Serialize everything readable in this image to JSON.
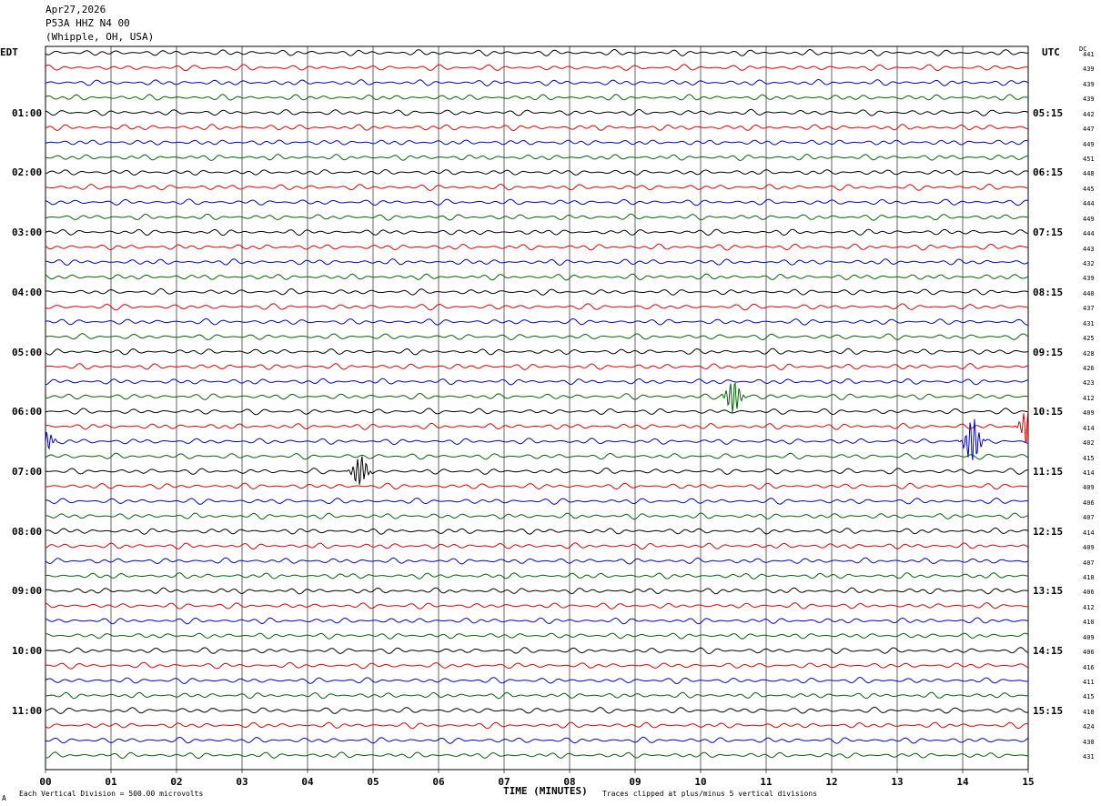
{
  "header": {
    "date": "Apr27,2026",
    "station": "P53A HHZ N4 00",
    "location": "(Whipple, OH, USA)"
  },
  "left_axis_title": "EDT",
  "right_axis_title": "UTC",
  "dc_title": "DC",
  "footer": {
    "scale_note": "Each Vertical Division =  500.00 microvolts",
    "clip_note": "Traces clipped at plus/minus 5 vertical divisions",
    "corner_mark": "A"
  },
  "colors": {
    "trace_cycle": [
      "#000000",
      "#e00000",
      "#0000cc",
      "#006400"
    ],
    "grid": "#000000"
  },
  "chart_data": {
    "type": "line",
    "title": "P53A HHZ N4 00",
    "xlabel": "TIME (MINUTES)",
    "xlim": [
      0,
      15
    ],
    "x_ticks": [
      "00",
      "01",
      "02",
      "03",
      "04",
      "05",
      "06",
      "07",
      "08",
      "09",
      "10",
      "11",
      "12",
      "13",
      "14",
      "15"
    ],
    "traces_per_hour": 4,
    "trace_count": 48,
    "left_hour_labels": [
      "01:00",
      "02:00",
      "03:00",
      "04:00",
      "05:00",
      "06:00",
      "07:00",
      "08:00",
      "09:00",
      "10:00",
      "11:00"
    ],
    "right_hour_labels": [
      "05:15",
      "06:15",
      "07:15",
      "08:15",
      "09:15",
      "10:15",
      "11:15",
      "12:15",
      "13:15",
      "14:15",
      "15:15"
    ],
    "dc_offsets": [
      441,
      439,
      439,
      439,
      442,
      447,
      449,
      451,
      448,
      445,
      444,
      449,
      444,
      443,
      432,
      439,
      440,
      437,
      431,
      425,
      428,
      426,
      423,
      412,
      409,
      414,
      402,
      415,
      414,
      409,
      406,
      407,
      414,
      409,
      407,
      410,
      406,
      412,
      410,
      409,
      406,
      416,
      411,
      415,
      418,
      424,
      430,
      431
    ],
    "events": [
      {
        "trace": 23,
        "minute": 10.5,
        "amplitude": 2.2
      },
      {
        "trace": 25,
        "minute": 15.0,
        "amplitude": 2.6
      },
      {
        "trace": 26,
        "minute": 0.0,
        "amplitude": 1.4
      },
      {
        "trace": 26,
        "minute": 14.15,
        "amplitude": 3.0
      },
      {
        "trace": 28,
        "minute": 4.8,
        "amplitude": 2.0
      }
    ]
  }
}
